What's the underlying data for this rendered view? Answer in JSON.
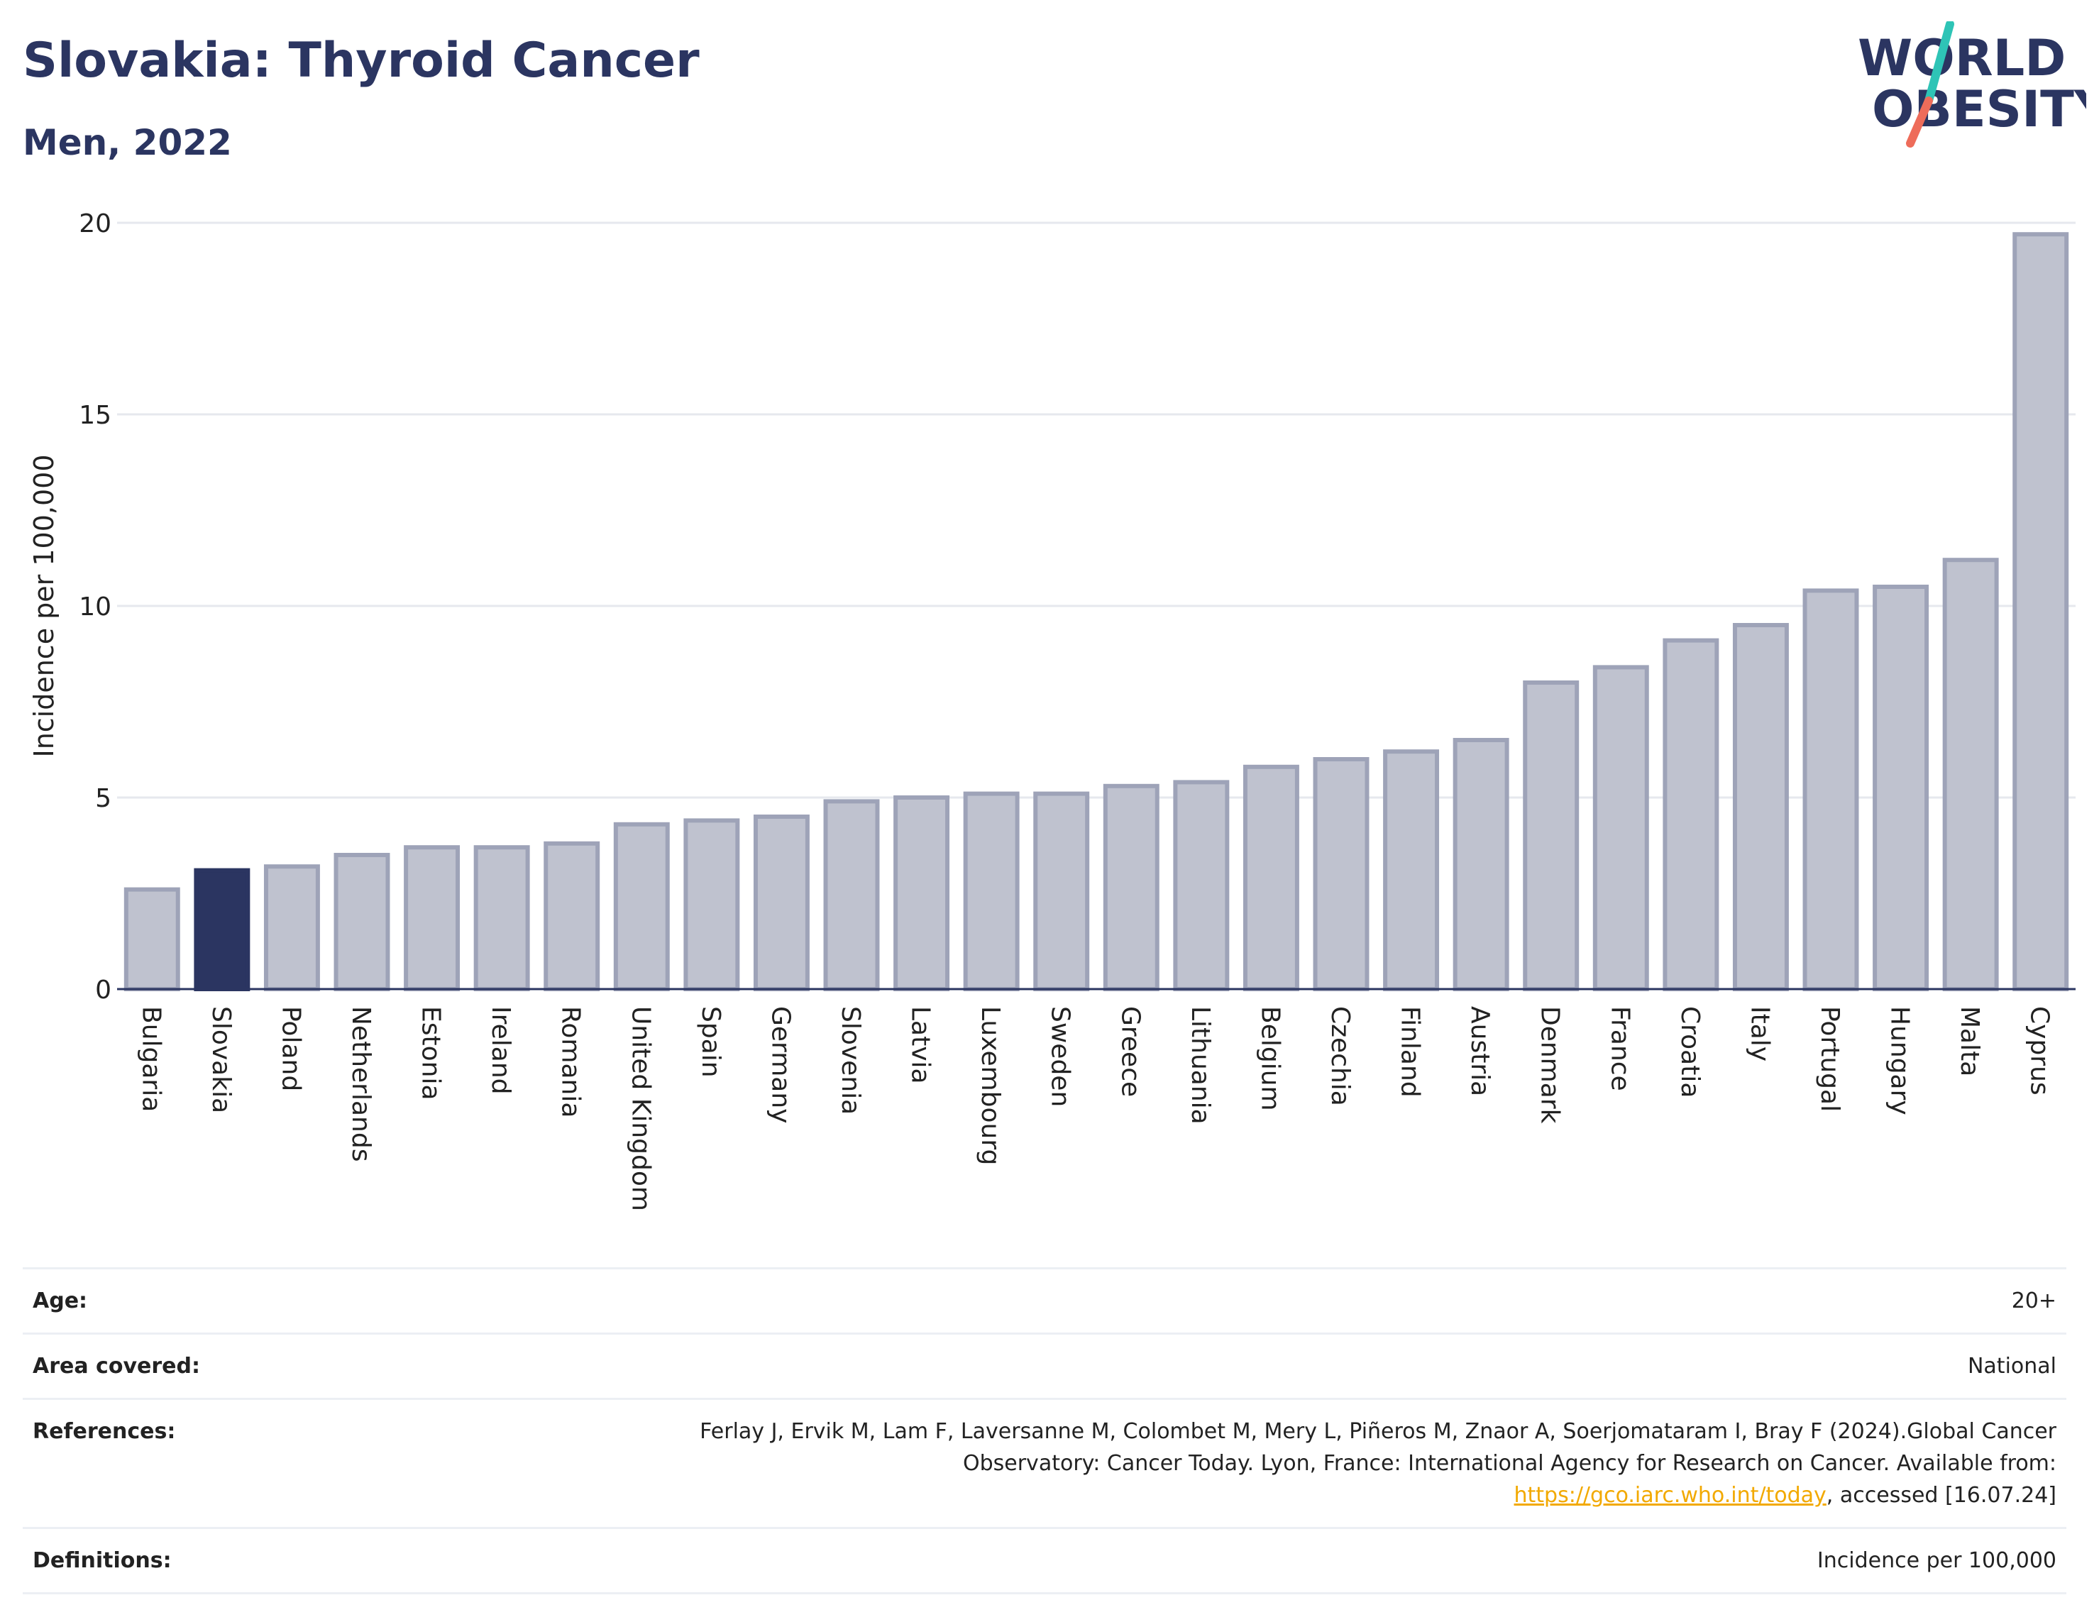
{
  "header": {
    "title": "Slovakia: Thyroid Cancer",
    "subtitle": "Men, 2022"
  },
  "logo": {
    "line1": "WORLD",
    "line2": "OBESITY",
    "colors": {
      "text": "#2b3561",
      "slash_top": "#2ec4b6",
      "slash_bottom": "#ee6c5a"
    }
  },
  "chart_data": {
    "type": "bar",
    "ylabel": "Incidence per 100,000",
    "ylim": [
      0,
      20
    ],
    "yticks": [
      0,
      5,
      10,
      15,
      20
    ],
    "grid": true,
    "highlight": "Slovakia",
    "colors": {
      "bar": "#bfc2cf",
      "bar_border": "#9ea3b8",
      "highlight": "#2b3561",
      "grid": "#e6e8ee",
      "axis": "#2b3561"
    },
    "categories": [
      "Bulgaria",
      "Slovakia",
      "Poland",
      "Netherlands",
      "Estonia",
      "Ireland",
      "Romania",
      "United Kingdom",
      "Spain",
      "Germany",
      "Slovenia",
      "Latvia",
      "Luxembourg",
      "Sweden",
      "Greece",
      "Lithuania",
      "Belgium",
      "Czechia",
      "Finland",
      "Austria",
      "Denmark",
      "France",
      "Croatia",
      "Italy",
      "Portugal",
      "Hungary",
      "Malta",
      "Cyprus"
    ],
    "values": [
      2.6,
      3.1,
      3.2,
      3.5,
      3.7,
      3.7,
      3.8,
      4.3,
      4.4,
      4.5,
      4.9,
      5.0,
      5.1,
      5.1,
      5.3,
      5.4,
      5.8,
      6.0,
      6.2,
      6.5,
      8.0,
      8.4,
      9.1,
      9.5,
      10.4,
      10.5,
      11.2,
      19.7
    ]
  },
  "info": {
    "age": {
      "label": "Age:",
      "value": "20+"
    },
    "area": {
      "label": "Area covered:",
      "value": "National"
    },
    "references": {
      "label": "References:",
      "text_before": "Ferlay J, Ervik M, Lam F, Laversanne M, Colombet M, Mery L, Piñeros M, Znaor A, Soerjomataram I, Bray F (2024).Global Cancer Observatory: Cancer Today. Lyon, France: International Agency for Research on Cancer. Available from: ",
      "link": "https://gco.iarc.who.int/today",
      "text_after": ", accessed [16.07.24]"
    },
    "definitions": {
      "label": "Definitions:",
      "value": "Incidence per 100,000"
    }
  }
}
